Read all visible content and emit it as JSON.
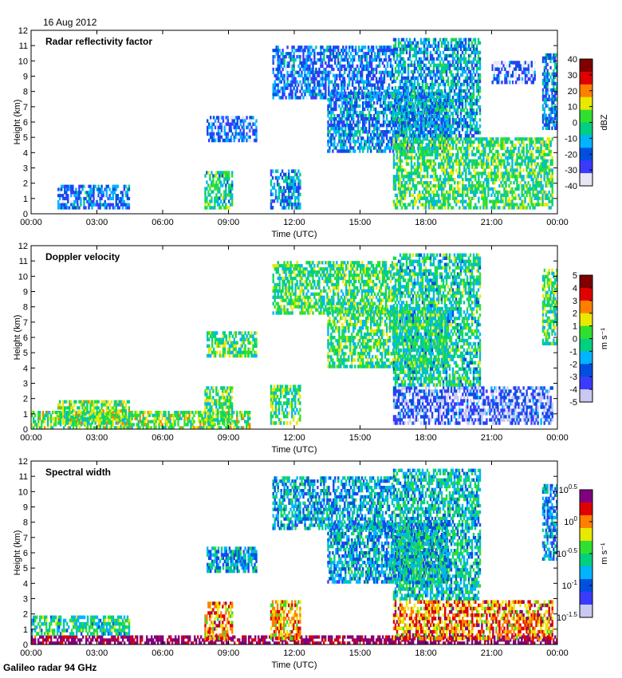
{
  "header": {
    "date": "16 Aug 2012"
  },
  "footer": {
    "instrument": "Galileo radar 94 GHz"
  },
  "chart_data": [
    {
      "type": "heatmap",
      "title": "Radar reflectivity factor",
      "xlabel": "Time (UTC)",
      "ylabel": "Height (km)",
      "x_ticks": [
        "00:00",
        "03:00",
        "06:00",
        "09:00",
        "12:00",
        "15:00",
        "18:00",
        "21:00",
        "00:00"
      ],
      "y_ticks": [
        "0",
        "1",
        "2",
        "3",
        "4",
        "5",
        "6",
        "7",
        "8",
        "9",
        "10",
        "11",
        "12"
      ],
      "xlim": [
        0,
        24
      ],
      "ylim": [
        0,
        12
      ],
      "colorbar": {
        "label": "dBZ",
        "ticks": [
          "40",
          "30",
          "20",
          "10",
          "0",
          "-10",
          "-20",
          "-30",
          "-40"
        ],
        "range": [
          -40,
          40
        ]
      },
      "colormap": [
        "#e6e6f5",
        "#3b3bff",
        "#0050e0",
        "#00b4ff",
        "#00d080",
        "#30e030",
        "#e8e800",
        "#ff8000",
        "#e00000",
        "#800000"
      ],
      "features": [
        {
          "t0": 1.2,
          "t1": 4.5,
          "h0": 0.3,
          "h1": 1.9,
          "v": 0.25
        },
        {
          "t0": 7.9,
          "t1": 9.2,
          "h0": 0.3,
          "h1": 2.8,
          "v": 0.45
        },
        {
          "t0": 8.0,
          "t1": 10.3,
          "h0": 4.7,
          "h1": 6.4,
          "v": 0.2
        },
        {
          "t0": 10.9,
          "t1": 12.3,
          "h0": 0.3,
          "h1": 2.9,
          "v": 0.3
        },
        {
          "t0": 11.0,
          "t1": 16.5,
          "h0": 7.5,
          "h1": 11.0,
          "v": 0.25
        },
        {
          "t0": 13.5,
          "t1": 19.0,
          "h0": 4.0,
          "h1": 8.0,
          "v": 0.3
        },
        {
          "t0": 16.5,
          "t1": 23.8,
          "h0": 0.3,
          "h1": 5.0,
          "v": 0.5
        },
        {
          "t0": 16.5,
          "t1": 20.5,
          "h0": 5.0,
          "h1": 11.5,
          "v": 0.35
        },
        {
          "t0": 21.0,
          "t1": 23.0,
          "h0": 8.5,
          "h1": 10.0,
          "v": 0.15
        },
        {
          "t0": 23.3,
          "t1": 24.0,
          "h0": 5.5,
          "h1": 10.5,
          "v": 0.3
        }
      ]
    },
    {
      "type": "heatmap",
      "title": "Doppler velocity",
      "xlabel": "Time (UTC)",
      "ylabel": "Height (km)",
      "x_ticks": [
        "00:00",
        "03:00",
        "06:00",
        "09:00",
        "12:00",
        "15:00",
        "18:00",
        "21:00",
        "00:00"
      ],
      "y_ticks": [
        "0",
        "1",
        "2",
        "3",
        "4",
        "5",
        "6",
        "7",
        "8",
        "9",
        "10",
        "11",
        "12"
      ],
      "xlim": [
        0,
        24
      ],
      "ylim": [
        0,
        12
      ],
      "colorbar": {
        "label": "m s⁻¹",
        "ticks": [
          "5",
          "4",
          "3",
          "2",
          "1",
          "0",
          "-1",
          "-2",
          "-3",
          "-4",
          "-5"
        ],
        "range": [
          -5,
          5
        ]
      },
      "colormap": [
        "#c8c8f0",
        "#3b3bff",
        "#0050e0",
        "#00b4ff",
        "#00d080",
        "#30e030",
        "#e8e800",
        "#ff8000",
        "#e00000",
        "#800000"
      ],
      "features": [
        {
          "t0": 0.0,
          "t1": 10.0,
          "h0": 0.0,
          "h1": 1.2,
          "v": 0.55
        },
        {
          "t0": 1.2,
          "t1": 4.5,
          "h0": 0.3,
          "h1": 1.9,
          "v": 0.55
        },
        {
          "t0": 7.9,
          "t1": 9.2,
          "h0": 0.3,
          "h1": 2.8,
          "v": 0.5
        },
        {
          "t0": 8.0,
          "t1": 10.3,
          "h0": 4.7,
          "h1": 6.4,
          "v": 0.5
        },
        {
          "t0": 10.9,
          "t1": 12.3,
          "h0": 0.3,
          "h1": 2.9,
          "v": 0.5
        },
        {
          "t0": 11.0,
          "t1": 16.5,
          "h0": 7.5,
          "h1": 11.0,
          "v": 0.5
        },
        {
          "t0": 13.5,
          "t1": 19.0,
          "h0": 4.0,
          "h1": 8.0,
          "v": 0.5
        },
        {
          "t0": 16.5,
          "t1": 23.8,
          "h0": 0.3,
          "h1": 2.8,
          "v": 0.15
        },
        {
          "t0": 16.5,
          "t1": 20.5,
          "h0": 2.8,
          "h1": 11.5,
          "v": 0.45
        },
        {
          "t0": 23.3,
          "t1": 24.0,
          "h0": 5.5,
          "h1": 10.5,
          "v": 0.5
        }
      ]
    },
    {
      "type": "heatmap",
      "title": "Spectral width",
      "xlabel": "Time (UTC)",
      "ylabel": "Height (km)",
      "x_ticks": [
        "00:00",
        "03:00",
        "06:00",
        "09:00",
        "12:00",
        "15:00",
        "18:00",
        "21:00",
        "00:00"
      ],
      "y_ticks": [
        "0",
        "1",
        "2",
        "3",
        "4",
        "5",
        "6",
        "7",
        "8",
        "9",
        "10",
        "11",
        "12"
      ],
      "xlim": [
        0,
        24
      ],
      "ylim": [
        0,
        12
      ],
      "colorbar": {
        "label": "m s⁻¹",
        "ticks": [
          "10^0.5",
          "10^0",
          "10^-0.5",
          "10^-1",
          "10^-1.5"
        ],
        "range": [
          -1.5,
          0.5
        ],
        "scale": "log"
      },
      "colormap": [
        "#c8c8f0",
        "#3b3bff",
        "#0050e0",
        "#00b4ff",
        "#00d080",
        "#30e030",
        "#e8e800",
        "#ff8000",
        "#e00000",
        "#800080"
      ],
      "features": [
        {
          "t0": 0.0,
          "t1": 24.0,
          "h0": 0.0,
          "h1": 0.6,
          "v": 0.97
        },
        {
          "t0": 0.0,
          "t1": 4.5,
          "h0": 0.6,
          "h1": 1.9,
          "v": 0.45
        },
        {
          "t0": 7.9,
          "t1": 9.2,
          "h0": 0.3,
          "h1": 2.8,
          "v": 0.75
        },
        {
          "t0": 8.0,
          "t1": 10.3,
          "h0": 4.7,
          "h1": 6.4,
          "v": 0.35
        },
        {
          "t0": 10.9,
          "t1": 12.3,
          "h0": 0.3,
          "h1": 2.9,
          "v": 0.72
        },
        {
          "t0": 11.0,
          "t1": 16.5,
          "h0": 7.5,
          "h1": 11.0,
          "v": 0.35
        },
        {
          "t0": 13.5,
          "t1": 19.0,
          "h0": 4.0,
          "h1": 8.0,
          "v": 0.35
        },
        {
          "t0": 16.5,
          "t1": 23.8,
          "h0": 0.3,
          "h1": 2.9,
          "v": 0.75
        },
        {
          "t0": 16.5,
          "t1": 20.5,
          "h0": 2.9,
          "h1": 11.5,
          "v": 0.4
        },
        {
          "t0": 23.3,
          "t1": 24.0,
          "h0": 5.5,
          "h1": 10.5,
          "v": 0.3
        }
      ]
    }
  ]
}
